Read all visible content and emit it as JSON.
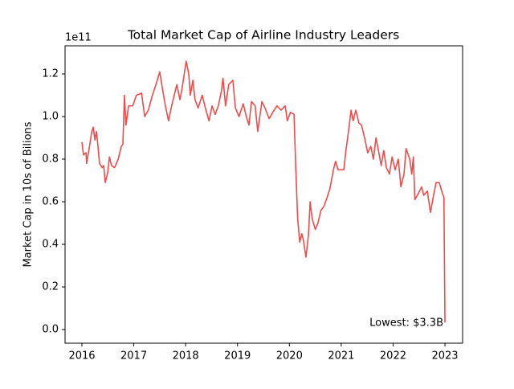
{
  "chart_data": {
    "type": "line",
    "title": "Total Market Cap of Airline Industry Leaders",
    "y_label": "Market Cap in 10s of Bilions",
    "y_offset_label": "1e11",
    "annotation": "Lowest: $3.3B",
    "xlim": [
      2015.675,
      2023.34
    ],
    "ylim": [
      -0.064,
      1.332
    ],
    "xticks": [
      2016,
      2017,
      2018,
      2019,
      2020,
      2021,
      2022,
      2023
    ],
    "yticks": [
      {
        "value": 0,
        "label": "0.0"
      },
      0.2,
      0.4,
      0.6,
      0.8,
      {
        "value": 1,
        "label": "1.0"
      },
      1.2
    ],
    "grid": false,
    "series": [
      {
        "color": "#f24a4a",
        "x": [
          2016.0,
          2016.03,
          2016.08,
          2016.09,
          2016.14,
          2016.19,
          2016.22,
          2016.25,
          2016.28,
          2016.31,
          2016.34,
          2016.39,
          2016.42,
          2016.45,
          2016.5,
          2016.53,
          2016.57,
          2016.63,
          2016.7,
          2016.76,
          2016.79,
          2016.82,
          2016.85,
          2016.9,
          2016.98,
          2017.05,
          2017.15,
          2017.21,
          2017.28,
          2017.36,
          2017.44,
          2017.5,
          2017.56,
          2017.61,
          2017.67,
          2017.73,
          2017.83,
          2017.89,
          2017.93,
          2018.01,
          2018.06,
          2018.09,
          2018.14,
          2018.18,
          2018.24,
          2018.32,
          2018.38,
          2018.45,
          2018.51,
          2018.57,
          2018.63,
          2018.69,
          2018.72,
          2018.77,
          2018.83,
          2018.91,
          2018.96,
          2019.03,
          2019.11,
          2019.17,
          2019.22,
          2019.27,
          2019.34,
          2019.39,
          2019.47,
          2019.53,
          2019.61,
          2019.68,
          2019.76,
          2019.84,
          2019.92,
          2019.96,
          2020.02,
          2020.09,
          2020.12,
          2020.16,
          2020.2,
          2020.24,
          2020.27,
          2020.32,
          2020.37,
          2020.4,
          2020.44,
          2020.5,
          2020.55,
          2020.61,
          2020.67,
          2020.74,
          2020.78,
          2020.85,
          2020.89,
          2020.94,
          2021.05,
          2021.09,
          2021.14,
          2021.19,
          2021.23,
          2021.28,
          2021.34,
          2021.39,
          2021.45,
          2021.51,
          2021.57,
          2021.62,
          2021.67,
          2021.71,
          2021.77,
          2021.82,
          2021.87,
          2021.93,
          2021.98,
          2022.04,
          2022.1,
          2022.15,
          2022.21,
          2022.25,
          2022.32,
          2022.36,
          2022.39,
          2022.42,
          2022.49,
          2022.55,
          2022.59,
          2022.66,
          2022.72,
          2022.78,
          2022.83,
          2022.89,
          2022.95,
          2022.98,
          2023.0
        ],
        "values": [
          0.88,
          0.82,
          0.83,
          0.78,
          0.85,
          0.93,
          0.95,
          0.89,
          0.93,
          0.86,
          0.78,
          0.76,
          0.77,
          0.69,
          0.74,
          0.81,
          0.77,
          0.76,
          0.8,
          0.86,
          0.87,
          1.1,
          0.96,
          1.05,
          1.05,
          1.1,
          1.11,
          1.0,
          1.03,
          1.1,
          1.16,
          1.21,
          1.12,
          1.05,
          0.98,
          1.05,
          1.15,
          1.08,
          1.13,
          1.26,
          1.2,
          1.1,
          1.17,
          1.08,
          1.04,
          1.1,
          1.04,
          0.98,
          1.05,
          1.01,
          1.05,
          1.12,
          1.18,
          1.05,
          1.15,
          1.17,
          1.04,
          1.0,
          1.06,
          1.0,
          0.96,
          1.07,
          1.05,
          0.93,
          1.07,
          1.04,
          0.99,
          1.02,
          1.05,
          1.03,
          1.05,
          0.98,
          1.02,
          1.01,
          0.78,
          0.52,
          0.41,
          0.45,
          0.42,
          0.34,
          0.45,
          0.6,
          0.52,
          0.47,
          0.5,
          0.56,
          0.58,
          0.63,
          0.66,
          0.75,
          0.79,
          0.75,
          0.75,
          0.84,
          0.93,
          1.03,
          0.98,
          1.03,
          0.97,
          0.96,
          0.9,
          0.83,
          0.86,
          0.8,
          0.9,
          0.85,
          0.77,
          0.84,
          0.76,
          0.73,
          0.81,
          0.75,
          0.8,
          0.67,
          0.73,
          0.85,
          0.8,
          0.73,
          0.81,
          0.61,
          0.64,
          0.67,
          0.63,
          0.65,
          0.55,
          0.63,
          0.69,
          0.69,
          0.64,
          0.62,
          0.033
        ]
      }
    ]
  }
}
